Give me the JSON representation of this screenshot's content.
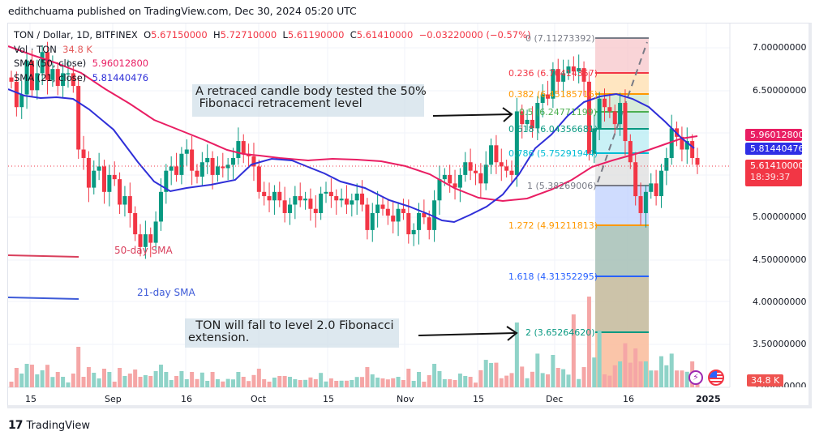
{
  "publish_line": "edithchuama published on TradingView.com, Dec 30, 2024 05:20 UTC",
  "legend": {
    "symbol": "TON / Dollar, 1D, BITFINEX",
    "open_label": "O",
    "open": "5.67150000",
    "high_label": "H",
    "high": "5.72710000",
    "low_label": "L",
    "low": "5.61190000",
    "close_label": "C",
    "close": "5.61410000",
    "change": "−0.03220000 (−0.57%)",
    "vol_label": "Vol · TON",
    "vol": "34.8 K",
    "sma50_label": "SMA (50, close)",
    "sma50": "5.96012800",
    "sma21_label": "SMA (21, close)",
    "sma21": "5.81440476"
  },
  "price_axis": {
    "labels": [
      "7.00000000",
      "6.50000000",
      "5.00000000",
      "4.50000000",
      "4.00000000",
      "3.50000000",
      "3.00000000"
    ],
    "tags": {
      "sma50": "5.96012800",
      "sma21": "5.81440476",
      "last_price": "5.61410000",
      "countdown": "18:39:37",
      "volume": "34.8 K"
    }
  },
  "time_axis": [
    "15",
    "Sep",
    "16",
    "Oct",
    "15",
    "Nov",
    "15",
    "Dec",
    "16",
    "2025"
  ],
  "fibonacci": [
    {
      "level": "0",
      "price": "7.11273392",
      "color": "#787b86"
    },
    {
      "level": "0.236",
      "price": "6.70414357",
      "color": "#f23645"
    },
    {
      "level": "0.382",
      "price": "6.45185716",
      "color": "#ff9800"
    },
    {
      "level": "0.5",
      "price": "6.24771199",
      "color": "#4caf50"
    },
    {
      "level": "0.618",
      "price": "6.04356681",
      "color": "#089981"
    },
    {
      "level": "0.786",
      "price": "5.75291944",
      "color": "#00bcd4"
    },
    {
      "level": "1",
      "price": "5.38269006",
      "color": "#787b86"
    },
    {
      "level": "1.272",
      "price": "4.91211813",
      "color": "#ff9800"
    },
    {
      "level": "1.618",
      "price": "4.31352295",
      "color": "#2962ff"
    },
    {
      "level": "2",
      "price": "3.65264620",
      "color": "#089981"
    }
  ],
  "annotations": {
    "note1": "A retraced candle body tested the 50%\n Fibonacci retracement level",
    "note2": "  TON will fall to level 2.0 Fibonacci\nextension.",
    "sma50_label": "50-day SMA",
    "sma21_label": "21-day SMA"
  },
  "colors": {
    "up": "#089981",
    "down": "#f23645",
    "sma50": "#e91e63",
    "sma21": "#2f2fd8",
    "vol_up": "#8fd3c8",
    "vol_down": "#f5a6a6"
  },
  "footer": {
    "brand": "TradingView"
  },
  "chart_data": {
    "type": "candlestick",
    "title": "TON / Dollar, 1D, BITFINEX",
    "x_range": [
      "Aug 2024",
      "Dec 30 2024"
    ],
    "ylim": [
      3.0,
      7.2
    ],
    "series": [
      {
        "name": "SMA (50, close)",
        "last": 5.960128
      },
      {
        "name": "SMA (21, close)",
        "last": 5.81440476
      }
    ],
    "ohlc_last": {
      "open": 5.6715,
      "high": 5.7271,
      "low": 5.6119,
      "close": 5.6141,
      "change": -0.0322,
      "change_pct": -0.57
    },
    "fib_levels": [
      [
        0,
        7.11273392
      ],
      [
        0.236,
        6.70414357
      ],
      [
        0.382,
        6.45185716
      ],
      [
        0.5,
        6.24771199
      ],
      [
        0.618,
        6.04356681
      ],
      [
        0.786,
        5.75291944
      ],
      [
        1,
        5.38269006
      ],
      [
        1.272,
        4.91211813
      ],
      [
        1.618,
        4.31352295
      ],
      [
        2,
        3.6526462
      ]
    ]
  }
}
